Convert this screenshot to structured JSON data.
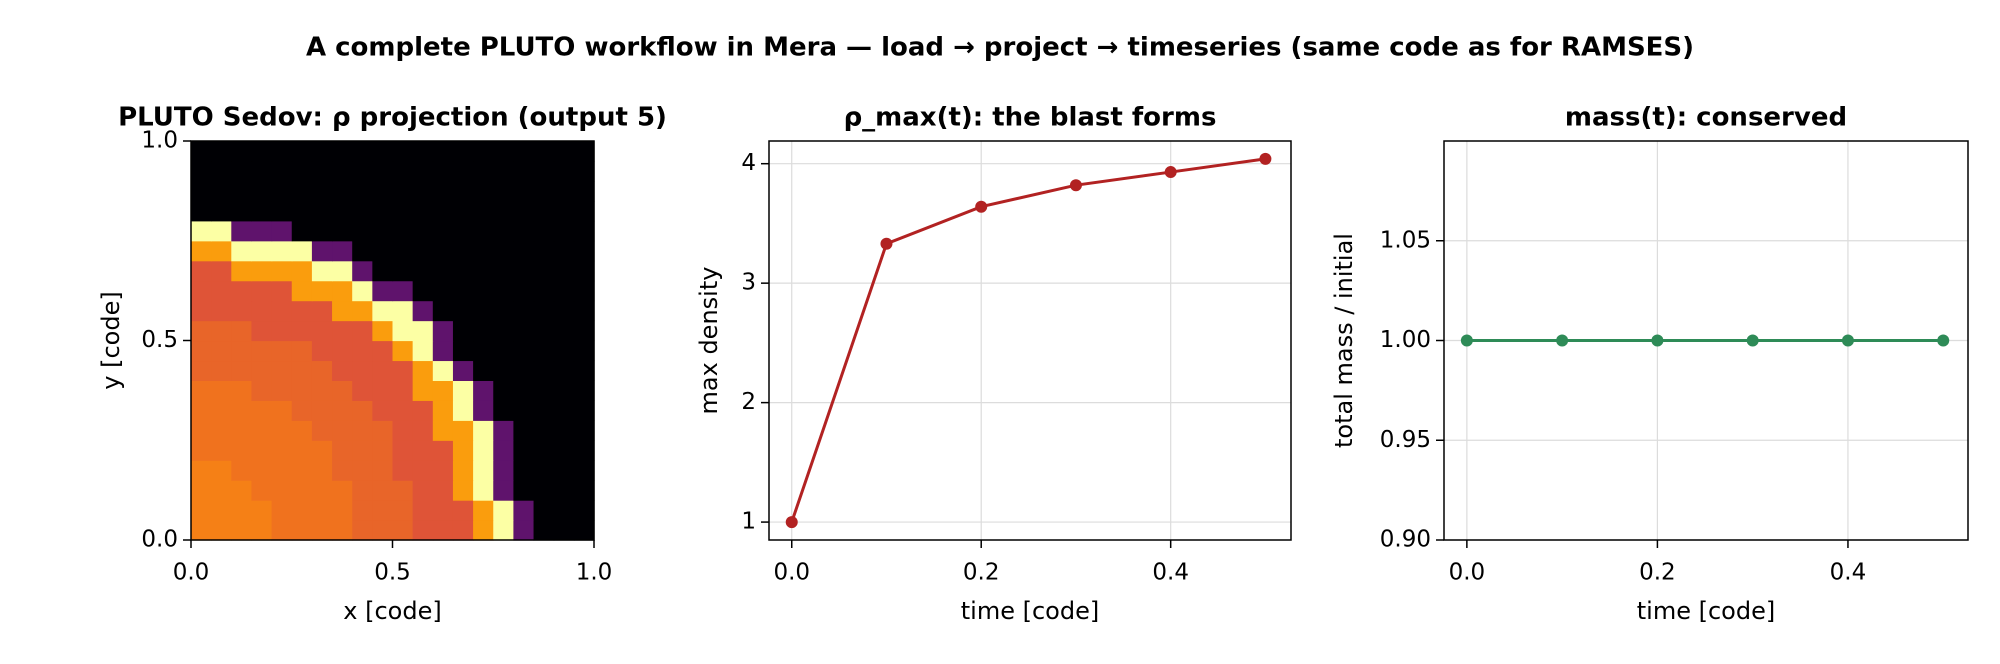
{
  "title": "A complete PLUTO workflow in Mera — load → project → timeseries (same code as for RAMSES)",
  "chart_data": [
    {
      "type": "heatmap",
      "title": "PLUTO Sedov: ρ projection (output 5)",
      "xlabel": "x [code]",
      "ylabel": "y [code]",
      "xlim": [
        0,
        1
      ],
      "ylim": [
        0,
        1
      ],
      "xticks": [
        {
          "value": 0,
          "label": "0.0"
        },
        {
          "value": 0.5,
          "label": "0.5"
        },
        {
          "value": 1,
          "label": "1.0"
        }
      ],
      "yticks": [
        {
          "value": 0,
          "label": "0.0"
        },
        {
          "value": 0.5,
          "label": "0.5"
        },
        {
          "value": 1,
          "label": "1.0"
        }
      ],
      "grid": false,
      "z": [
        [
          0.66,
          0.66,
          0.66,
          0.66,
          0.63,
          0.63,
          0.63,
          0.63,
          0.6,
          0.6,
          0.6,
          0.56,
          0.56,
          0.56,
          0.72,
          0.92,
          0.25,
          0,
          0,
          0
        ],
        [
          0.66,
          0.66,
          0.66,
          0.66,
          0.63,
          0.63,
          0.63,
          0.63,
          0.6,
          0.6,
          0.6,
          0.56,
          0.56,
          0.56,
          0.72,
          0.92,
          0.25,
          0,
          0,
          0
        ],
        [
          0.66,
          0.66,
          0.66,
          0.63,
          0.63,
          0.63,
          0.63,
          0.63,
          0.6,
          0.6,
          0.6,
          0.56,
          0.56,
          0.72,
          0.92,
          0.25,
          0,
          0,
          0,
          0
        ],
        [
          0.66,
          0.66,
          0.63,
          0.63,
          0.63,
          0.63,
          0.63,
          0.6,
          0.6,
          0.6,
          0.56,
          0.56,
          0.56,
          0.72,
          0.92,
          0.25,
          0,
          0,
          0,
          0
        ],
        [
          0.63,
          0.63,
          0.63,
          0.63,
          0.63,
          0.63,
          0.63,
          0.6,
          0.6,
          0.6,
          0.56,
          0.56,
          0.56,
          0.72,
          0.92,
          0.25,
          0,
          0,
          0,
          0
        ],
        [
          0.63,
          0.63,
          0.63,
          0.63,
          0.63,
          0.63,
          0.6,
          0.6,
          0.6,
          0.6,
          0.56,
          0.56,
          0.72,
          0.72,
          0.92,
          0.25,
          0,
          0,
          0,
          0
        ],
        [
          0.63,
          0.63,
          0.63,
          0.63,
          0.63,
          0.6,
          0.6,
          0.6,
          0.6,
          0.56,
          0.56,
          0.56,
          0.72,
          0.92,
          0.25,
          0,
          0,
          0,
          0,
          0
        ],
        [
          0.63,
          0.63,
          0.63,
          0.6,
          0.6,
          0.6,
          0.6,
          0.6,
          0.56,
          0.56,
          0.56,
          0.72,
          0.72,
          0.92,
          0.25,
          0,
          0,
          0,
          0,
          0
        ],
        [
          0.6,
          0.6,
          0.6,
          0.6,
          0.6,
          0.6,
          0.6,
          0.56,
          0.56,
          0.56,
          0.56,
          0.72,
          0.92,
          0.25,
          0,
          0,
          0,
          0,
          0,
          0
        ],
        [
          0.6,
          0.6,
          0.6,
          0.6,
          0.6,
          0.6,
          0.56,
          0.56,
          0.56,
          0.56,
          0.72,
          0.92,
          0.25,
          0,
          0,
          0,
          0,
          0,
          0,
          0
        ],
        [
          0.6,
          0.6,
          0.6,
          0.56,
          0.56,
          0.56,
          0.56,
          0.56,
          0.56,
          0.72,
          0.92,
          0.92,
          0.25,
          0,
          0,
          0,
          0,
          0,
          0,
          0
        ],
        [
          0.56,
          0.56,
          0.56,
          0.56,
          0.56,
          0.56,
          0.56,
          0.72,
          0.72,
          0.92,
          0.92,
          0.25,
          0,
          0,
          0,
          0,
          0,
          0,
          0,
          0
        ],
        [
          0.56,
          0.56,
          0.56,
          0.56,
          0.56,
          0.72,
          0.72,
          0.72,
          0.92,
          0.25,
          0.25,
          0,
          0,
          0,
          0,
          0,
          0,
          0,
          0,
          0
        ],
        [
          0.56,
          0.56,
          0.72,
          0.72,
          0.72,
          0.72,
          0.92,
          0.92,
          0.25,
          0,
          0,
          0,
          0,
          0,
          0,
          0,
          0,
          0,
          0,
          0
        ],
        [
          0.72,
          0.72,
          0.92,
          0.92,
          0.92,
          0.92,
          0.25,
          0.25,
          0,
          0,
          0,
          0,
          0,
          0,
          0,
          0,
          0,
          0,
          0,
          0
        ],
        [
          0.92,
          0.92,
          0.25,
          0.25,
          0.25,
          0,
          0,
          0,
          0,
          0,
          0,
          0,
          0,
          0,
          0,
          0,
          0,
          0,
          0,
          0
        ],
        [
          0,
          0,
          0,
          0,
          0,
          0,
          0,
          0,
          0,
          0,
          0,
          0,
          0,
          0,
          0,
          0,
          0,
          0,
          0,
          0
        ],
        [
          0,
          0,
          0,
          0,
          0,
          0,
          0,
          0,
          0,
          0,
          0,
          0,
          0,
          0,
          0,
          0,
          0,
          0,
          0,
          0
        ],
        [
          0,
          0,
          0,
          0,
          0,
          0,
          0,
          0,
          0,
          0,
          0,
          0,
          0,
          0,
          0,
          0,
          0,
          0,
          0,
          0
        ],
        [
          0,
          0,
          0,
          0,
          0,
          0,
          0,
          0,
          0,
          0,
          0,
          0,
          0,
          0,
          0,
          0,
          0,
          0,
          0,
          0
        ]
      ]
    },
    {
      "type": "line",
      "title": "ρ_max(t): the blast forms",
      "xlabel": "time [code]",
      "ylabel": "max density",
      "x": [
        0,
        0.1,
        0.2,
        0.3,
        0.4,
        0.5
      ],
      "values": [
        1.0,
        3.33,
        3.64,
        3.82,
        3.93,
        4.04
      ],
      "color": "#b22222",
      "xlim": [
        -0.024,
        0.527
      ],
      "ylim": [
        0.85,
        4.19
      ],
      "xticks": [
        {
          "value": 0,
          "label": "0.0"
        },
        {
          "value": 0.2,
          "label": "0.2"
        },
        {
          "value": 0.4,
          "label": "0.4"
        }
      ],
      "yticks": [
        1,
        2,
        3,
        4
      ],
      "grid": true
    },
    {
      "type": "line",
      "title": "mass(t): conserved",
      "xlabel": "time [code]",
      "ylabel": "total mass / initial",
      "x": [
        0,
        0.1,
        0.2,
        0.3,
        0.4,
        0.5
      ],
      "values": [
        1.0,
        1.0,
        1.0,
        1.0,
        1.0,
        1.0
      ],
      "color": "#2e8b57",
      "xlim": [
        -0.024,
        0.526
      ],
      "ylim": [
        0.9,
        1.1
      ],
      "xticks": [
        {
          "value": 0,
          "label": "0.0"
        },
        {
          "value": 0.2,
          "label": "0.2"
        },
        {
          "value": 0.4,
          "label": "0.4"
        }
      ],
      "yticks": [
        {
          "value": 0.9,
          "label": "0.90"
        },
        {
          "value": 0.95,
          "label": "0.95"
        },
        {
          "value": 1,
          "label": "1.00"
        },
        {
          "value": 1.05,
          "label": "1.05"
        }
      ],
      "grid": true
    }
  ]
}
